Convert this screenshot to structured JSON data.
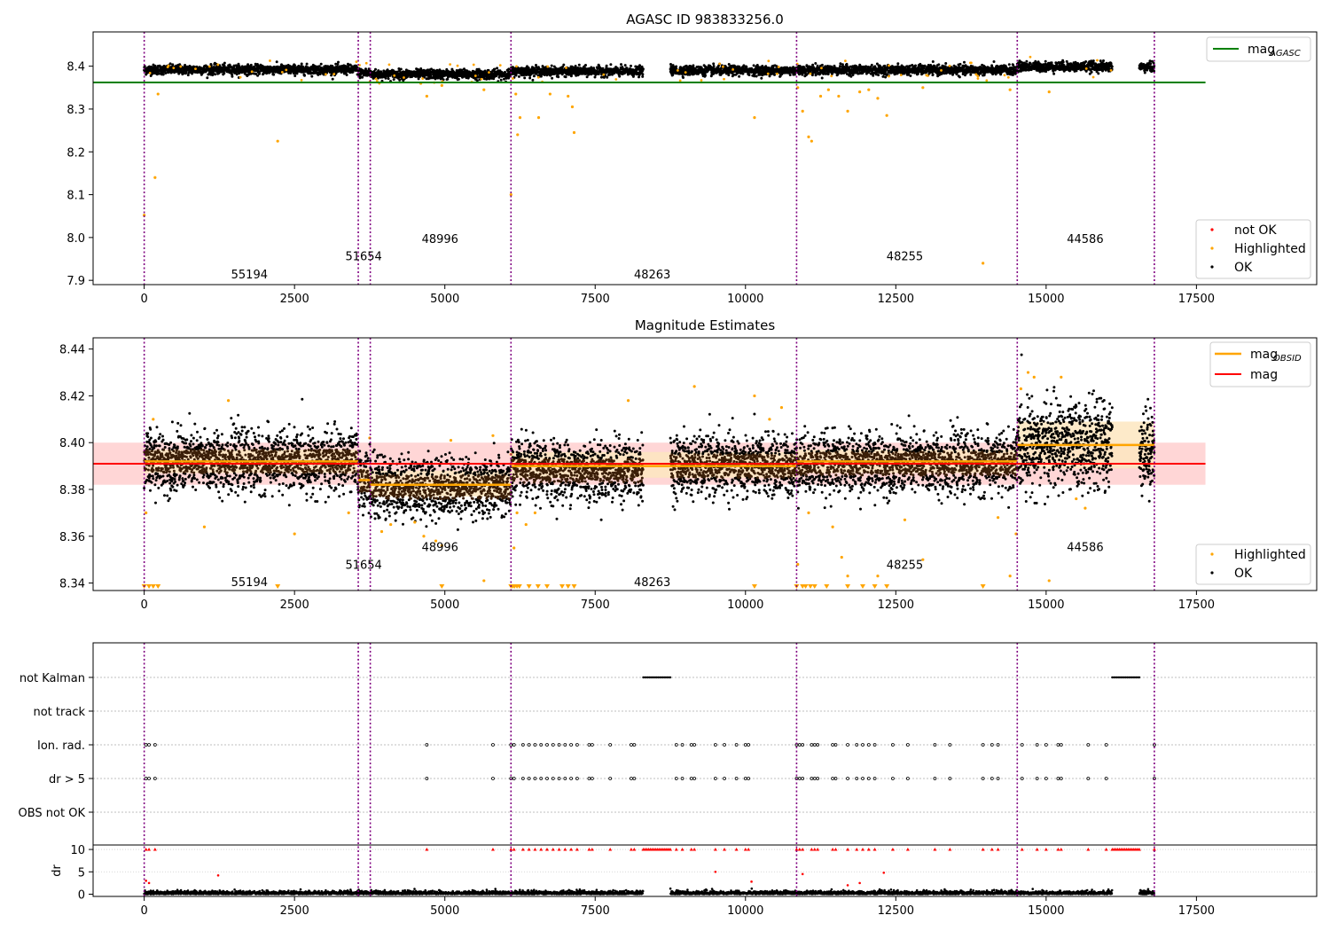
{
  "chart_data": [
    {
      "type": "scatter",
      "title": "AGASC ID 983833256.0",
      "xlim": [
        -850,
        19500
      ],
      "ylim": [
        7.89,
        8.48
      ],
      "xticks": [
        0,
        2500,
        5000,
        7500,
        10000,
        12500,
        15000,
        17500
      ],
      "yticks": [
        7.9,
        8.0,
        8.1,
        8.2,
        8.3,
        8.4
      ],
      "reference_line": {
        "name": "mag_AGASC",
        "value": 8.362,
        "x_range": [
          -850,
          17650
        ],
        "color": "#008000"
      },
      "legends": [
        {
          "entries": [
            {
              "label": "mag",
              "sub": "AGASC",
              "color": "#008000",
              "marker": "line"
            }
          ],
          "loc": "upper right"
        },
        {
          "entries": [
            {
              "label": "not OK",
              "color": "#ff0000",
              "marker": "dot"
            },
            {
              "label": "Highlighted",
              "color": "#ffa500",
              "marker": "dot"
            },
            {
              "label": "OK",
              "color": "#000000",
              "marker": "dot"
            }
          ],
          "loc": "lower right"
        }
      ],
      "obsid_labels": [
        {
          "label": "55194",
          "x": 1750,
          "y": 7.915
        },
        {
          "label": "51654",
          "x": 3650,
          "y": 7.957
        },
        {
          "label": "48996",
          "x": 4920,
          "y": 7.998
        },
        {
          "label": "48263",
          "x": 8450,
          "y": 7.915
        },
        {
          "label": "48255",
          "x": 12650,
          "y": 7.957
        },
        {
          "label": "44586",
          "x": 15650,
          "y": 7.998
        }
      ],
      "segments": [
        {
          "x": [
            0,
            3560
          ],
          "level": 8.392
        },
        {
          "x": [
            3560,
            3760
          ],
          "level": 8.384
        },
        {
          "x": [
            3760,
            6100
          ],
          "level": 8.381
        },
        {
          "x": [
            6100,
            8300
          ],
          "level": 8.388
        },
        {
          "x": [
            8750,
            10850
          ],
          "level": 8.39
        },
        {
          "x": [
            10850,
            14520
          ],
          "level": 8.391
        },
        {
          "x": [
            14520,
            16100
          ],
          "level": 8.399
        },
        {
          "x": [
            16550,
            16800
          ],
          "level": 8.398
        }
      ],
      "highlighted_points": [
        [
          0,
          8.052
        ],
        [
          180,
          8.14
        ],
        [
          230,
          8.335
        ],
        [
          2220,
          8.225
        ],
        [
          4600,
          8.36
        ],
        [
          4700,
          8.33
        ],
        [
          4950,
          8.355
        ],
        [
          5650,
          8.345
        ],
        [
          6100,
          8.1
        ],
        [
          6180,
          8.335
        ],
        [
          6210,
          8.24
        ],
        [
          6250,
          8.28
        ],
        [
          6560,
          8.28
        ],
        [
          6750,
          8.335
        ],
        [
          7050,
          8.33
        ],
        [
          7120,
          8.305
        ],
        [
          7150,
          8.245
        ],
        [
          10150,
          8.28
        ],
        [
          10870,
          8.35
        ],
        [
          10950,
          8.295
        ],
        [
          11050,
          8.235
        ],
        [
          11100,
          8.225
        ],
        [
          11250,
          8.33
        ],
        [
          11380,
          8.345
        ],
        [
          11550,
          8.33
        ],
        [
          11700,
          8.295
        ],
        [
          11900,
          8.34
        ],
        [
          12050,
          8.345
        ],
        [
          12200,
          8.325
        ],
        [
          12350,
          8.285
        ],
        [
          12950,
          8.35
        ],
        [
          13950,
          7.94
        ],
        [
          14400,
          8.345
        ],
        [
          15050,
          8.34
        ]
      ]
    },
    {
      "type": "scatter",
      "title": "Magnitude Estimates",
      "xlim": [
        -850,
        19500
      ],
      "ylim": [
        8.3368,
        8.4448
      ],
      "xticks": [
        0,
        2500,
        5000,
        7500,
        10000,
        12500,
        15000,
        17500
      ],
      "yticks": [
        8.34,
        8.36,
        8.38,
        8.4,
        8.42,
        8.44
      ],
      "mag": {
        "value": 8.391,
        "band": [
          8.382,
          8.4
        ],
        "x_range": [
          -850,
          17650
        ],
        "color": "#ff0000"
      },
      "mag_obsid": [
        {
          "x": [
            0,
            3560
          ],
          "value": 8.392,
          "band": [
            8.387,
            8.397
          ]
        },
        {
          "x": [
            3560,
            3760
          ],
          "value": 8.384,
          "band": [
            8.379,
            8.389
          ]
        },
        {
          "x": [
            3760,
            6100
          ],
          "value": 8.382,
          "band": [
            8.377,
            8.388
          ]
        },
        {
          "x": [
            6100,
            10850
          ],
          "value": 8.39,
          "band": [
            8.385,
            8.396
          ]
        },
        {
          "x": [
            10850,
            14520
          ],
          "value": 8.392,
          "band": [
            8.387,
            8.397
          ]
        },
        {
          "x": [
            14520,
            16800
          ],
          "value": 8.399,
          "band": [
            8.389,
            8.409
          ]
        }
      ],
      "legends": [
        {
          "entries": [
            {
              "label": "mag",
              "sub": "OBSID",
              "color": "#ffa500",
              "marker": "line"
            },
            {
              "label": "mag",
              "color": "#ff0000",
              "marker": "line"
            }
          ],
          "loc": "upper right"
        },
        {
          "entries": [
            {
              "label": "Highlighted",
              "color": "#ffa500",
              "marker": "dot"
            },
            {
              "label": "OK",
              "color": "#000000",
              "marker": "dot"
            }
          ],
          "loc": "lower right"
        }
      ],
      "obsid_labels": [
        {
          "label": "55194",
          "x": 1750,
          "y": 8.3405
        },
        {
          "label": "51654",
          "x": 3650,
          "y": 8.348
        },
        {
          "label": "48996",
          "x": 4920,
          "y": 8.3555
        },
        {
          "label": "48263",
          "x": 8450,
          "y": 8.3405
        },
        {
          "label": "48255",
          "x": 12650,
          "y": 8.348
        },
        {
          "label": "44586",
          "x": 15650,
          "y": 8.3555
        }
      ],
      "highlighted_points": [
        [
          30,
          8.37
        ],
        [
          150,
          8.41
        ],
        [
          1000,
          8.364
        ],
        [
          1400,
          8.418
        ],
        [
          2500,
          8.361
        ],
        [
          3400,
          8.37
        ],
        [
          3750,
          8.402
        ],
        [
          3950,
          8.362
        ],
        [
          4100,
          8.365
        ],
        [
          4500,
          8.366
        ],
        [
          4650,
          8.36
        ],
        [
          4850,
          8.358
        ],
        [
          4950,
          8.356
        ],
        [
          5100,
          8.401
        ],
        [
          5650,
          8.341
        ],
        [
          5800,
          8.403
        ],
        [
          6100,
          8.395
        ],
        [
          6150,
          8.355
        ],
        [
          6200,
          8.37
        ],
        [
          6350,
          8.365
        ],
        [
          6500,
          8.37
        ],
        [
          8050,
          8.418
        ],
        [
          9150,
          8.424
        ],
        [
          10150,
          8.42
        ],
        [
          10400,
          8.41
        ],
        [
          10600,
          8.415
        ],
        [
          10870,
          8.348
        ],
        [
          11050,
          8.37
        ],
        [
          11450,
          8.364
        ],
        [
          11600,
          8.351
        ],
        [
          11700,
          8.343
        ],
        [
          12200,
          8.343
        ],
        [
          12650,
          8.367
        ],
        [
          12950,
          8.35
        ],
        [
          14200,
          8.368
        ],
        [
          14400,
          8.343
        ],
        [
          14500,
          8.361
        ],
        [
          14580,
          8.423
        ],
        [
          14700,
          8.43
        ],
        [
          14800,
          8.428
        ],
        [
          15250,
          8.428
        ],
        [
          15050,
          8.341
        ],
        [
          15500,
          8.376
        ],
        [
          15650,
          8.372
        ]
      ],
      "below_range_x": [
        0,
        80,
        150,
        230,
        2220,
        4950,
        6100,
        6130,
        6160,
        6200,
        6240,
        6400,
        6550,
        6700,
        6950,
        7050,
        7150,
        10150,
        10850,
        10950,
        11000,
        11080,
        11150,
        11350,
        11700,
        11950,
        12150,
        12350,
        13950
      ]
    },
    {
      "type": "scatter",
      "xlim": [
        -850,
        19500
      ],
      "flag_rows": [
        "not Kalman",
        "not track",
        "Ion. rad.",
        "dr > 5",
        "OBS not OK"
      ],
      "flags": {
        "not Kalman": {
          "ranges": [
            [
              8300,
              8750
            ],
            [
              16100,
              16550
            ]
          ]
        },
        "not track": {
          "ranges": []
        },
        "Ion. rad.": {
          "points": [
            30,
            80,
            180,
            4700,
            5800,
            6100,
            6150,
            6300,
            6400,
            6500,
            6600,
            6700,
            6800,
            6900,
            7000,
            7100,
            7200,
            7400,
            7450,
            7750,
            8100,
            8150,
            8850,
            8950,
            9100,
            9150,
            9500,
            9650,
            9850,
            10000,
            10050,
            10850,
            10900,
            10950,
            11100,
            11150,
            11200,
            11450,
            11500,
            11700,
            11850,
            11950,
            12050,
            12150,
            12450,
            12700,
            13150,
            13400,
            13950,
            14100,
            14200,
            14600,
            14850,
            15000,
            15200,
            15250,
            15700,
            16000,
            16800
          ]
        },
        "dr > 5": {
          "points": [
            30,
            80,
            180,
            4700,
            5800,
            6100,
            6150,
            6300,
            6400,
            6500,
            6600,
            6700,
            6800,
            6900,
            7000,
            7100,
            7200,
            7400,
            7450,
            7750,
            8100,
            8150,
            8850,
            8950,
            9100,
            9150,
            9500,
            9650,
            9850,
            10000,
            10050,
            10850,
            10900,
            10950,
            11100,
            11150,
            11200,
            11450,
            11500,
            11700,
            11850,
            11950,
            12050,
            12150,
            12450,
            12700,
            13150,
            13400,
            13950,
            14100,
            14200,
            14600,
            14850,
            15000,
            15200,
            15250,
            15700,
            16000,
            16800
          ]
        },
        "OBS not OK": {
          "ranges": []
        }
      },
      "dr_panel": {
        "ylabel": "dr",
        "yticks": [
          0,
          5,
          10
        ],
        "ylim": [
          -0.5,
          11
        ],
        "clipped_value": 10,
        "xticks": [
          0,
          2500,
          5000,
          7500,
          10000,
          12500,
          15000,
          17500
        ],
        "outlier_points": [
          [
            30,
            3.0
          ],
          [
            80,
            2.5
          ],
          [
            1230,
            4.2
          ],
          [
            9500,
            5.0
          ],
          [
            10100,
            2.8
          ],
          [
            10950,
            4.5
          ],
          [
            11700,
            2.0
          ],
          [
            11900,
            2.5
          ],
          [
            12300,
            4.8
          ]
        ]
      }
    }
  ],
  "obsid_boundaries": [
    0,
    3560,
    3760,
    6100,
    10850,
    14520,
    16800
  ],
  "observing_gaps": [
    [
      8300,
      8750
    ],
    [
      16100,
      16550
    ]
  ],
  "colors": {
    "ok": "#000000",
    "highlighted": "#ffa500",
    "not_ok": "#ff0000",
    "agasc": "#008000",
    "mag": "#ff0000",
    "mag_obsid": "#ffa500",
    "boundary": "#800080",
    "band_red": "#ffd6d6",
    "band_orange": "#fde6c0"
  }
}
